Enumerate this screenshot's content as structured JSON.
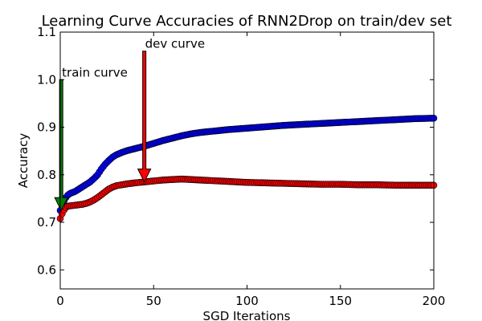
{
  "chart_data": {
    "type": "scatter",
    "title": "Learning Curve Accuracies of RNN2Drop on train/dev set",
    "xlabel": "SGD Iterations",
    "ylabel": "Accuracy",
    "xlim": [
      0,
      200
    ],
    "ylim": [
      0.56,
      1.1
    ],
    "xticks": [
      "0",
      "50",
      "100",
      "150",
      "200"
    ],
    "yticks": [
      "0.6",
      "0.7",
      "0.8",
      "0.9",
      "1.0",
      "1.1"
    ],
    "grid": false,
    "series": [
      {
        "color": "#0000ff",
        "x": [
          0,
          1,
          2,
          3,
          4,
          5,
          6,
          8,
          10,
          12,
          14,
          16,
          18,
          20,
          22,
          24,
          26,
          28,
          30,
          33,
          36,
          40,
          45,
          50,
          55,
          60,
          65,
          70,
          75,
          80,
          90,
          100,
          110,
          120,
          130,
          140,
          150,
          160,
          170,
          180,
          190,
          200
        ],
        "y": [
          0.725,
          0.735,
          0.745,
          0.752,
          0.757,
          0.76,
          0.762,
          0.765,
          0.77,
          0.775,
          0.78,
          0.785,
          0.792,
          0.8,
          0.812,
          0.822,
          0.83,
          0.837,
          0.842,
          0.847,
          0.851,
          0.855,
          0.86,
          0.866,
          0.872,
          0.877,
          0.882,
          0.886,
          0.889,
          0.891,
          0.895,
          0.898,
          0.901,
          0.904,
          0.906,
          0.908,
          0.91,
          0.912,
          0.914,
          0.916,
          0.918,
          0.919
        ]
      },
      {
        "color": "#ff0000",
        "x": [
          0,
          1,
          2,
          3,
          4,
          6,
          8,
          10,
          12,
          14,
          16,
          18,
          20,
          22,
          24,
          26,
          28,
          30,
          33,
          36,
          40,
          45,
          50,
          55,
          60,
          65,
          70,
          75,
          80,
          90,
          100,
          110,
          120,
          130,
          140,
          150,
          160,
          170,
          180,
          190,
          200
        ],
        "y": [
          0.708,
          0.718,
          0.726,
          0.731,
          0.734,
          0.735,
          0.736,
          0.737,
          0.738,
          0.74,
          0.743,
          0.747,
          0.752,
          0.758,
          0.764,
          0.77,
          0.774,
          0.777,
          0.779,
          0.781,
          0.783,
          0.785,
          0.787,
          0.789,
          0.79,
          0.791,
          0.79,
          0.789,
          0.788,
          0.786,
          0.784,
          0.783,
          0.782,
          0.781,
          0.78,
          0.78,
          0.779,
          0.779,
          0.778,
          0.778,
          0.778
        ]
      }
    ],
    "annotations": [
      {
        "text": "train curve",
        "x_from": 0.5,
        "y_from": 1.0,
        "x_to": 0.5,
        "y_to": 0.725,
        "color": "#008000"
      },
      {
        "text": "dev curve",
        "x_from": 45,
        "y_from": 1.06,
        "x_to": 45,
        "y_to": 0.785,
        "color": "#ff0000"
      }
    ]
  }
}
